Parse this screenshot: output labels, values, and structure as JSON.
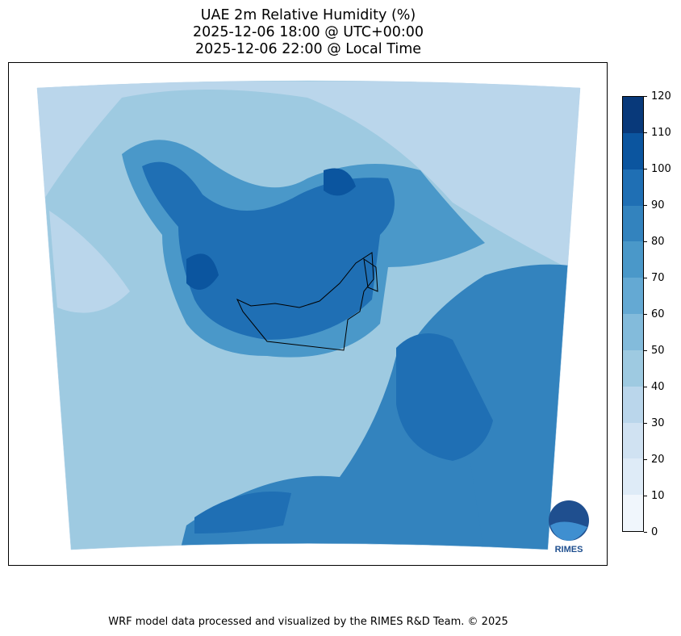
{
  "title": {
    "line1": "UAE 2m Relative Humidity (%)",
    "line2": "2025-12-06 18:00 @ UTC+00:00",
    "line3": "2025-12-06 22:00 @ Local Time"
  },
  "colorbar": {
    "ticks": [
      "0",
      "10",
      "20",
      "30",
      "40",
      "50",
      "60",
      "70",
      "80",
      "90",
      "100",
      "110",
      "120"
    ],
    "colors": [
      "#f0f6fc",
      "#deebf7",
      "#d0e2f2",
      "#bad6eb",
      "#9ecae1",
      "#83bbdb",
      "#64a9d3",
      "#4a98c9",
      "#3383be",
      "#1f6fb4",
      "#0b559f",
      "#08397a"
    ]
  },
  "logo": {
    "text": "RIMES"
  },
  "footer": "WRF model data processed and visualized by the RIMES R&D Team. © 2025"
}
